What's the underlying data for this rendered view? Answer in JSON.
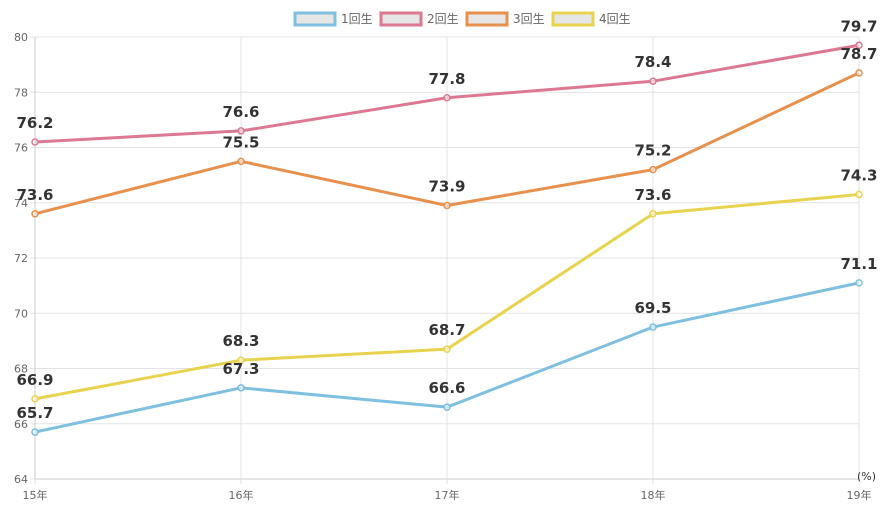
{
  "chart_data": {
    "type": "line",
    "categories": [
      "15年",
      "16年",
      "17年",
      "18年",
      "19年"
    ],
    "series": [
      {
        "name": "1回生",
        "color": "#7fbfdf",
        "values": [
          65.7,
          67.3,
          66.6,
          69.5,
          71.1
        ]
      },
      {
        "name": "2回生",
        "color": "#dc7891",
        "values": [
          76.2,
          76.6,
          77.8,
          78.4,
          79.7
        ]
      },
      {
        "name": "3回生",
        "color": "#e8914e",
        "values": [
          73.6,
          75.5,
          73.9,
          75.2,
          78.7
        ]
      },
      {
        "name": "4回生",
        "color": "#e8d34e",
        "values": [
          66.9,
          68.3,
          68.7,
          73.6,
          74.3
        ]
      }
    ],
    "ylim": [
      64,
      80
    ],
    "yticks": [
      "64",
      "66",
      "68",
      "70",
      "72",
      "74",
      "76",
      "78",
      "80"
    ],
    "unit_label": "(%)",
    "grid": true,
    "legend_position": "top-center"
  }
}
